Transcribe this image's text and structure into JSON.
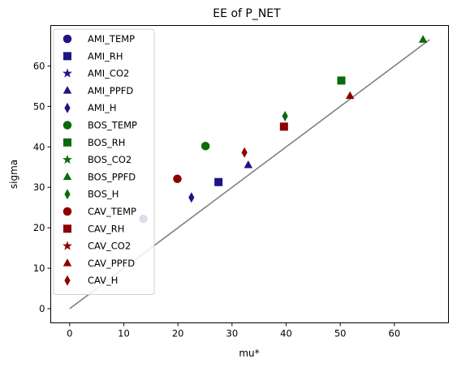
{
  "chart_data": {
    "type": "scatter",
    "title": "EE of P_NET",
    "xlabel": "mu*",
    "ylabel": "sigma",
    "xlim": [
      -3.5,
      70
    ],
    "ylim": [
      -3.5,
      70
    ],
    "xticks": [
      0,
      10,
      20,
      30,
      40,
      50,
      60
    ],
    "yticks": [
      0,
      10,
      20,
      30,
      40,
      50,
      60
    ],
    "grid": false,
    "legend_position": "upper-left",
    "reference_line": {
      "x": [
        0,
        66.5
      ],
      "y": [
        0,
        66.5
      ],
      "color": "#808080"
    },
    "series": [
      {
        "name": "AMI_TEMP",
        "marker": "circle",
        "color": "#1f1485",
        "points": [
          [
            13.6,
            22.2
          ]
        ]
      },
      {
        "name": "AMI_RH",
        "marker": "square",
        "color": "#1f1485",
        "points": [
          [
            27.5,
            31.3
          ]
        ]
      },
      {
        "name": "AMI_CO2",
        "marker": "star",
        "color": "#1f1485",
        "points": []
      },
      {
        "name": "AMI_PPFD",
        "marker": "triangle",
        "color": "#1f1485",
        "points": [
          [
            33.0,
            35.5
          ]
        ]
      },
      {
        "name": "AMI_H",
        "marker": "diamond",
        "color": "#1f1485",
        "points": [
          [
            22.5,
            27.5
          ]
        ]
      },
      {
        "name": "BOS_TEMP",
        "marker": "circle",
        "color": "#0a6b0a",
        "points": [
          [
            25.1,
            40.2
          ]
        ]
      },
      {
        "name": "BOS_RH",
        "marker": "square",
        "color": "#0a6b0a",
        "points": [
          [
            50.2,
            56.4
          ]
        ]
      },
      {
        "name": "BOS_CO2",
        "marker": "star",
        "color": "#0a6b0a",
        "points": []
      },
      {
        "name": "BOS_PPFD",
        "marker": "triangle",
        "color": "#0a6b0a",
        "points": [
          [
            65.3,
            66.5
          ]
        ]
      },
      {
        "name": "BOS_H",
        "marker": "diamond",
        "color": "#0a6b0a",
        "points": [
          [
            39.8,
            47.6
          ]
        ]
      },
      {
        "name": "CAV_TEMP",
        "marker": "circle",
        "color": "#8b0000",
        "points": [
          [
            19.9,
            32.1
          ]
        ]
      },
      {
        "name": "CAV_RH",
        "marker": "square",
        "color": "#8b0000",
        "points": [
          [
            39.6,
            45.0
          ]
        ]
      },
      {
        "name": "CAV_CO2",
        "marker": "star",
        "color": "#8b0000",
        "points": []
      },
      {
        "name": "CAV_PPFD",
        "marker": "triangle",
        "color": "#8b0000",
        "points": [
          [
            51.8,
            52.6
          ]
        ]
      },
      {
        "name": "CAV_H",
        "marker": "diamond",
        "color": "#8b0000",
        "points": [
          [
            32.3,
            38.6
          ]
        ]
      }
    ]
  }
}
